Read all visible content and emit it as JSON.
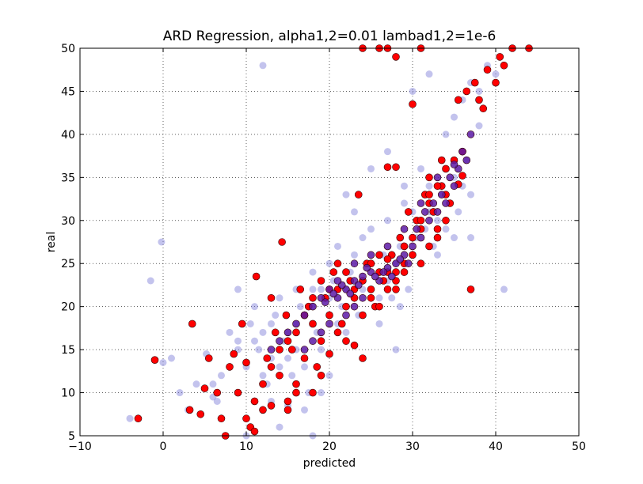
{
  "chart_data": {
    "type": "scatter",
    "title": "ARD Regression, alpha1,2=0.01 lambad1,2=1e-6",
    "xlabel": "predicted",
    "ylabel": "real",
    "xlim": [
      -10,
      50
    ],
    "ylim": [
      5,
      50
    ],
    "x_ticks": [
      "−10",
      "0",
      "10",
      "20",
      "30",
      "40",
      "50"
    ],
    "y_ticks": [
      "5",
      "10",
      "15",
      "20",
      "25",
      "30",
      "35",
      "40",
      "45",
      "50"
    ],
    "grid": true,
    "series": [
      {
        "color": "#7b7bd6",
        "opacity": 0.45,
        "points": [
          [
            -4,
            7
          ],
          [
            -1.5,
            23
          ],
          [
            -0.2,
            27.5
          ],
          [
            1,
            14
          ],
          [
            0,
            13.5
          ],
          [
            3,
            8
          ],
          [
            5.2,
            14.5
          ],
          [
            6,
            11
          ],
          [
            6.5,
            9
          ],
          [
            8,
            13
          ],
          [
            9,
            16
          ],
          [
            10,
            13
          ],
          [
            10.5,
            18
          ],
          [
            11,
            20
          ],
          [
            11.5,
            15
          ],
          [
            12,
            17
          ],
          [
            12.5,
            11
          ],
          [
            13,
            9
          ],
          [
            13.5,
            19
          ],
          [
            14,
            21
          ],
          [
            14.5,
            16
          ],
          [
            15,
            14
          ],
          [
            15.5,
            12
          ],
          [
            16,
            18
          ],
          [
            16.5,
            20
          ],
          [
            17,
            13
          ],
          [
            17.5,
            10
          ],
          [
            18,
            22
          ],
          [
            18.5,
            17
          ],
          [
            19,
            15
          ],
          [
            19.5,
            21
          ],
          [
            20,
            19
          ],
          [
            20.5,
            23
          ],
          [
            21,
            18
          ],
          [
            21.5,
            20
          ],
          [
            22,
            22
          ],
          [
            22.5,
            24
          ],
          [
            23,
            21
          ],
          [
            23.5,
            19
          ],
          [
            24,
            23
          ],
          [
            24.5,
            25
          ],
          [
            25,
            22
          ],
          [
            25.5,
            20
          ],
          [
            26,
            24
          ],
          [
            26.5,
            26
          ],
          [
            27,
            23
          ],
          [
            27.5,
            21
          ],
          [
            28,
            25
          ],
          [
            28.5,
            27
          ],
          [
            29,
            24
          ],
          [
            29.5,
            22
          ],
          [
            30,
            26
          ],
          [
            30.5,
            28
          ],
          [
            31,
            25
          ],
          [
            31.5,
            29
          ],
          [
            32,
            31
          ],
          [
            32.5,
            27
          ],
          [
            33,
            30
          ],
          [
            33.5,
            33
          ],
          [
            34,
            29
          ],
          [
            34.5,
            32
          ],
          [
            35,
            35
          ],
          [
            35.5,
            31
          ],
          [
            36,
            34
          ],
          [
            36.5,
            37
          ],
          [
            37,
            33
          ],
          [
            35,
            42
          ],
          [
            36,
            44
          ],
          [
            37,
            46
          ],
          [
            38,
            45
          ],
          [
            39,
            48
          ],
          [
            40,
            47
          ],
          [
            41,
            22
          ],
          [
            28,
            15
          ],
          [
            23,
            31
          ],
          [
            22,
            33
          ],
          [
            25,
            36
          ],
          [
            27,
            38
          ],
          [
            30,
            45
          ],
          [
            32,
            47
          ],
          [
            34,
            40
          ],
          [
            12,
            48
          ],
          [
            18,
            5
          ],
          [
            14,
            6
          ],
          [
            10,
            5
          ],
          [
            20,
            12
          ],
          [
            19,
            10
          ],
          [
            17,
            8
          ],
          [
            15,
            8.5
          ],
          [
            22,
            17
          ],
          [
            24,
            19
          ],
          [
            26,
            18
          ],
          [
            28.5,
            20
          ],
          [
            33,
            26
          ],
          [
            35,
            28
          ],
          [
            31,
            36
          ],
          [
            29,
            34
          ],
          [
            24,
            28
          ],
          [
            23,
            26
          ],
          [
            20,
            25
          ],
          [
            18,
            24
          ],
          [
            16,
            22
          ],
          [
            13,
            18
          ],
          [
            11,
            16
          ],
          [
            9,
            15
          ],
          [
            7,
            12
          ],
          [
            6,
            9.5
          ],
          [
            4,
            11
          ],
          [
            2,
            10
          ],
          [
            8,
            17
          ],
          [
            27,
            30
          ],
          [
            29,
            32
          ],
          [
            32,
            34
          ],
          [
            34,
            36
          ],
          [
            36,
            38
          ],
          [
            38,
            41
          ],
          [
            25,
            29
          ],
          [
            30,
            31
          ],
          [
            37,
            28
          ],
          [
            9,
            22
          ],
          [
            21,
            27
          ],
          [
            19,
            22
          ],
          [
            17,
            19
          ],
          [
            15,
            17
          ],
          [
            13,
            14
          ],
          [
            26,
            21
          ],
          [
            28,
            23
          ],
          [
            22,
            20
          ],
          [
            24,
            22
          ],
          [
            20,
            21
          ],
          [
            18,
            20
          ],
          [
            16,
            15
          ],
          [
            14,
            13
          ],
          [
            12,
            12
          ]
        ]
      },
      {
        "color": "#ff0000",
        "opacity": 1,
        "points": [
          [
            -3,
            7
          ],
          [
            -1,
            13.8
          ],
          [
            3.5,
            18
          ],
          [
            3.2,
            8
          ],
          [
            4.5,
            7.5
          ],
          [
            5,
            10.5
          ],
          [
            5.5,
            14
          ],
          [
            6.5,
            10
          ],
          [
            7,
            7
          ],
          [
            7.5,
            5
          ],
          [
            8,
            13
          ],
          [
            8.5,
            14.5
          ],
          [
            9,
            10
          ],
          [
            9.5,
            18
          ],
          [
            10,
            13.5
          ],
          [
            10.5,
            6
          ],
          [
            11,
            5.5
          ],
          [
            11.2,
            23.5
          ],
          [
            12,
            8
          ],
          [
            12.5,
            14
          ],
          [
            13,
            21
          ],
          [
            13.5,
            17
          ],
          [
            14,
            12
          ],
          [
            14.3,
            27.5
          ],
          [
            14.8,
            19
          ],
          [
            15,
            8
          ],
          [
            15.5,
            15
          ],
          [
            16,
            11
          ],
          [
            16.5,
            22
          ],
          [
            17,
            14
          ],
          [
            17.5,
            20
          ],
          [
            18,
            18
          ],
          [
            18.5,
            13
          ],
          [
            19,
            16
          ],
          [
            19.5,
            21
          ],
          [
            20,
            19
          ],
          [
            20.5,
            24
          ],
          [
            21,
            22
          ],
          [
            21.5,
            18
          ],
          [
            22,
            20
          ],
          [
            22.5,
            23
          ],
          [
            23,
            21
          ],
          [
            23.5,
            33
          ],
          [
            24,
            19
          ],
          [
            24.5,
            25
          ],
          [
            25,
            22
          ],
          [
            25.5,
            20
          ],
          [
            26,
            24
          ],
          [
            26.5,
            23
          ],
          [
            27,
            22
          ],
          [
            27.5,
            26
          ],
          [
            28,
            24
          ],
          [
            28.5,
            28
          ],
          [
            29,
            25
          ],
          [
            29.5,
            31
          ],
          [
            30,
            43.5
          ],
          [
            30.5,
            30
          ],
          [
            31,
            29
          ],
          [
            31.5,
            33
          ],
          [
            32,
            35
          ],
          [
            32.5,
            31
          ],
          [
            33,
            28
          ],
          [
            33.5,
            34
          ],
          [
            34,
            36
          ],
          [
            34.5,
            32
          ],
          [
            35,
            37
          ],
          [
            35.5,
            44
          ],
          [
            36,
            38
          ],
          [
            36.5,
            45
          ],
          [
            37,
            22
          ],
          [
            37.5,
            46
          ],
          [
            38,
            44
          ],
          [
            38.5,
            43
          ],
          [
            39,
            47.5
          ],
          [
            40,
            46
          ],
          [
            40.5,
            49
          ],
          [
            41,
            48
          ],
          [
            42,
            50
          ],
          [
            44,
            50
          ],
          [
            28,
            36.2
          ],
          [
            27,
            36.2
          ],
          [
            32,
            33
          ],
          [
            34,
            30
          ],
          [
            35.5,
            34.2
          ],
          [
            36,
            35.2
          ],
          [
            33.5,
            37
          ],
          [
            23,
            15.5
          ],
          [
            24,
            14
          ],
          [
            22,
            16
          ],
          [
            20,
            14.5
          ],
          [
            21,
            17
          ],
          [
            19,
            12
          ],
          [
            18,
            10
          ],
          [
            16,
            10
          ],
          [
            15,
            9
          ],
          [
            13,
            8.5
          ],
          [
            25,
            25
          ],
          [
            26,
            26
          ],
          [
            27,
            24
          ],
          [
            28,
            22
          ],
          [
            29,
            27
          ],
          [
            30,
            26
          ],
          [
            31,
            25
          ],
          [
            32,
            27
          ],
          [
            33,
            29
          ],
          [
            24,
            50
          ],
          [
            27,
            50
          ],
          [
            31,
            50
          ],
          [
            26,
            50
          ],
          [
            28,
            49
          ],
          [
            21,
            25
          ],
          [
            20,
            22
          ],
          [
            19,
            23
          ],
          [
            18,
            21
          ],
          [
            17,
            19
          ],
          [
            16,
            17
          ],
          [
            15,
            16
          ],
          [
            14,
            15
          ],
          [
            13,
            13
          ],
          [
            12,
            11
          ],
          [
            11,
            9
          ],
          [
            10,
            7
          ],
          [
            22,
            24
          ],
          [
            23,
            22
          ],
          [
            24,
            23
          ],
          [
            25,
            21
          ],
          [
            26,
            20
          ],
          [
            27,
            25.5
          ],
          [
            28,
            23
          ],
          [
            29,
            24
          ],
          [
            30,
            28
          ],
          [
            31,
            30
          ],
          [
            32,
            32
          ],
          [
            33,
            34
          ],
          [
            34,
            33
          ]
        ]
      },
      {
        "color": "#5c1aa6",
        "opacity": 0.85,
        "points": [
          [
            18,
            20
          ],
          [
            19,
            21
          ],
          [
            20,
            22
          ],
          [
            21,
            21
          ],
          [
            22,
            22
          ],
          [
            23,
            23
          ],
          [
            24,
            23.5
          ],
          [
            25,
            24
          ],
          [
            26,
            23
          ],
          [
            27,
            24.5
          ],
          [
            28,
            25
          ],
          [
            29,
            26
          ],
          [
            30,
            27
          ],
          [
            31,
            28
          ],
          [
            32,
            30
          ],
          [
            33,
            31
          ],
          [
            34,
            32
          ],
          [
            35,
            34
          ],
          [
            17,
            19
          ],
          [
            16,
            18
          ],
          [
            15,
            17
          ],
          [
            14,
            16
          ],
          [
            13,
            15
          ],
          [
            19.5,
            20.5
          ],
          [
            20.5,
            21.5
          ],
          [
            21.5,
            22.5
          ],
          [
            22.5,
            21.5
          ],
          [
            23.5,
            22.5
          ],
          [
            24.5,
            24.5
          ],
          [
            25.5,
            23.5
          ],
          [
            26.5,
            24
          ],
          [
            27.5,
            23.5
          ],
          [
            28.5,
            25.5
          ],
          [
            29.5,
            25
          ],
          [
            30.5,
            29
          ],
          [
            31.5,
            31
          ],
          [
            32.5,
            32
          ],
          [
            33.5,
            33
          ],
          [
            34.5,
            35
          ],
          [
            35.5,
            36
          ],
          [
            36.5,
            37
          ],
          [
            22,
            19
          ],
          [
            23,
            20
          ],
          [
            24,
            21
          ],
          [
            20,
            18
          ],
          [
            19,
            17
          ],
          [
            18,
            16
          ],
          [
            17,
            15
          ],
          [
            21,
            23
          ],
          [
            23,
            25
          ],
          [
            25,
            26
          ],
          [
            27,
            27
          ],
          [
            29,
            29
          ],
          [
            31,
            32
          ],
          [
            33,
            35
          ],
          [
            35,
            36.5
          ],
          [
            36,
            38
          ],
          [
            37,
            40
          ]
        ]
      }
    ]
  }
}
